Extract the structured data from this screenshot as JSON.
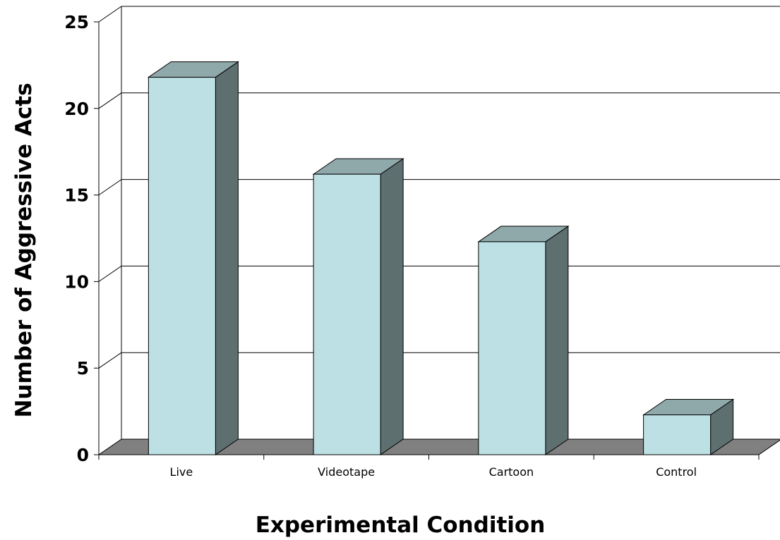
{
  "chart_data": {
    "type": "bar",
    "style": "3d",
    "categories": [
      "Live",
      "Videotape",
      "Cartoon",
      "Control"
    ],
    "values": [
      21.8,
      16.2,
      12.3,
      2.3
    ],
    "title": "",
    "xlabel": "Experimental Condition",
    "ylabel": "Number of Aggressive Acts",
    "ylim": [
      0,
      25
    ],
    "yticks": [
      0,
      5,
      10,
      15,
      20,
      25
    ],
    "grid": true,
    "legend": "none"
  },
  "colors": {
    "bar_front": "#bde0e4",
    "bar_top": "#8fa8aa",
    "bar_side": "#5e6f70",
    "floor": "#808080",
    "gridline": "#000000"
  }
}
